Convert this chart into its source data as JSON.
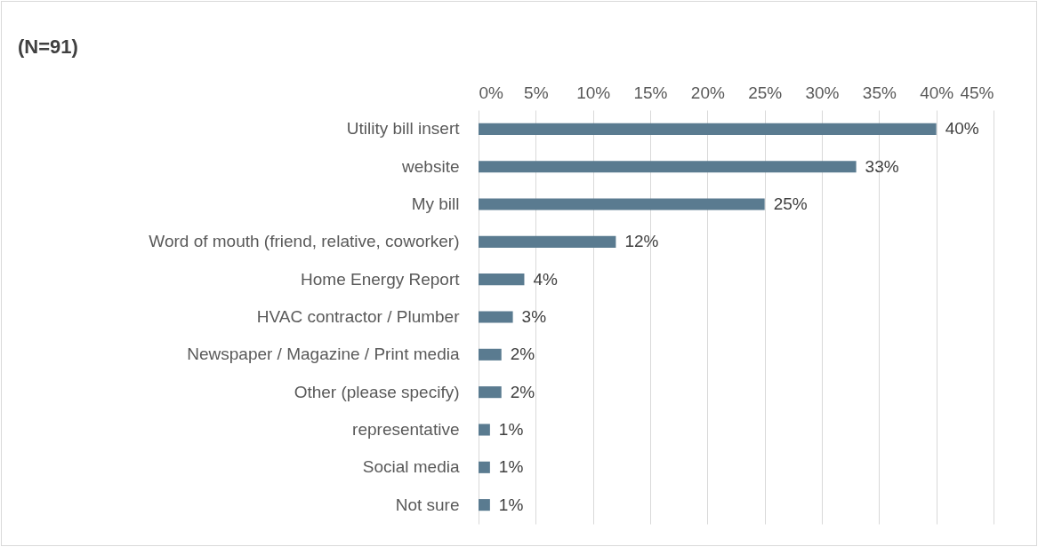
{
  "chart_data": {
    "type": "bar",
    "orientation": "horizontal",
    "title": "(N=91)",
    "categories": [
      "Utility bill insert",
      "website",
      "My bill",
      "Word of mouth (friend, relative, coworker)",
      "Home Energy Report",
      "HVAC contractor / Plumber",
      "Newspaper / Magazine / Print media",
      "Other (please specify)",
      "representative",
      "Social media",
      "Not sure"
    ],
    "values": [
      40,
      33,
      25,
      12,
      4,
      3,
      2,
      2,
      1,
      1,
      1
    ],
    "value_labels": [
      "40%",
      "33%",
      "25%",
      "12%",
      "4%",
      "3%",
      "2%",
      "2%",
      "1%",
      "1%",
      "1%"
    ],
    "color": "#5a7b90",
    "xlim": [
      0,
      45
    ],
    "xticks": [
      {
        "value": 0,
        "label": "0%"
      },
      {
        "value": 5,
        "label": "5%"
      },
      {
        "value": 10,
        "label": "10%"
      },
      {
        "value": 15,
        "label": "15%"
      },
      {
        "value": 20,
        "label": "20%"
      },
      {
        "value": 25,
        "label": "25%"
      },
      {
        "value": 30,
        "label": "30%"
      },
      {
        "value": 35,
        "label": "35%"
      },
      {
        "value": 40,
        "label": "40%"
      },
      {
        "value": 45,
        "label": "45%"
      }
    ],
    "grid": "x"
  }
}
